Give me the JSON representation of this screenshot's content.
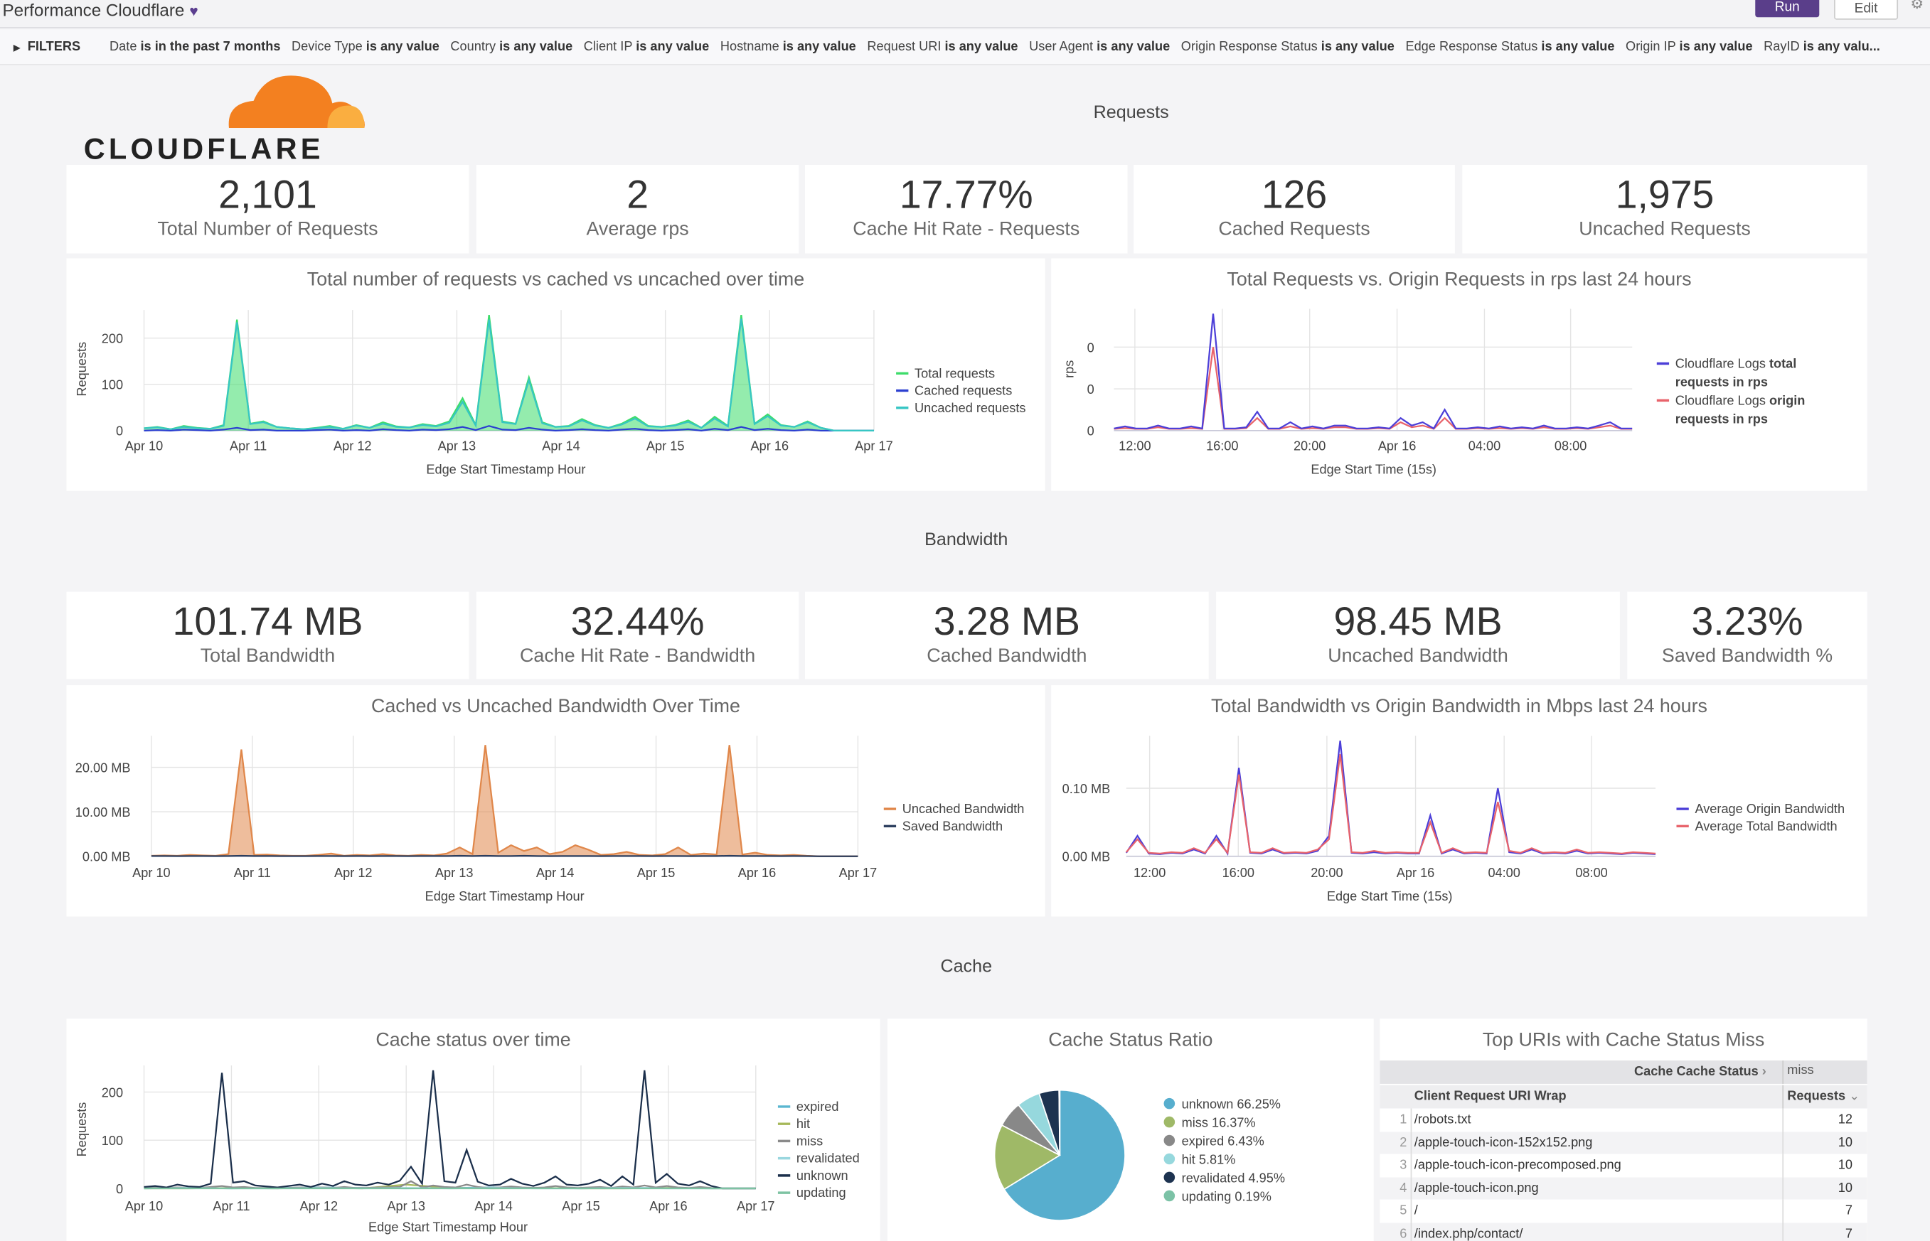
{
  "header": {
    "title": "Performance Cloudflare",
    "run_label": "Run",
    "edit_label": "Edit"
  },
  "filters": {
    "label": "FILTERS",
    "items": [
      {
        "field": "Date",
        "cond": "is in the past 7 months"
      },
      {
        "field": "Device Type",
        "cond": "is any value"
      },
      {
        "field": "Country",
        "cond": "is any value"
      },
      {
        "field": "Client IP",
        "cond": "is any value"
      },
      {
        "field": "Hostname",
        "cond": "is any value"
      },
      {
        "field": "Request URI",
        "cond": "is any value"
      },
      {
        "field": "User Agent",
        "cond": "is any value"
      },
      {
        "field": "Origin Response Status",
        "cond": "is any value"
      },
      {
        "field": "Edge Response Status",
        "cond": "is any value"
      },
      {
        "field": "Origin IP",
        "cond": "is any value"
      },
      {
        "field": "RayID",
        "cond": "is any valu..."
      }
    ]
  },
  "logo": {
    "text": "CLOUDFLARE",
    "color": "#f38020"
  },
  "sections": {
    "requests": "Requests",
    "bandwidth": "Bandwidth",
    "cache": "Cache"
  },
  "kpis_requests": [
    {
      "value": "2,101",
      "label": "Total Number of Requests"
    },
    {
      "value": "2",
      "label": "Average rps"
    },
    {
      "value": "17.77%",
      "label": "Cache Hit Rate - Requests"
    },
    {
      "value": "126",
      "label": "Cached Requests"
    },
    {
      "value": "1,975",
      "label": "Uncached Requests"
    }
  ],
  "kpis_bandwidth": [
    {
      "value": "101.74 MB",
      "label": "Total Bandwidth"
    },
    {
      "value": "32.44%",
      "label": "Cache Hit Rate - Bandwidth"
    },
    {
      "value": "3.28 MB",
      "label": "Cached Bandwidth"
    },
    {
      "value": "98.45 MB",
      "label": "Uncached Bandwidth"
    },
    {
      "value": "3.23%",
      "label": "Saved Bandwidth %"
    }
  ],
  "chart_data": [
    {
      "type": "area",
      "title": "Total number of requests vs cached vs uncached over time",
      "xlabel": "Edge Start Timestamp Hour",
      "ylabel": "Requests",
      "ylim": [
        0,
        250
      ],
      "x_ticks": [
        "Apr 10",
        "Apr 11",
        "Apr 12",
        "Apr 13",
        "Apr 14",
        "Apr 15",
        "Apr 16",
        "Apr 17"
      ],
      "y_ticks": [
        {
          "v": 0,
          "label": "0"
        },
        {
          "v": 100,
          "label": "100"
        },
        {
          "v": 200,
          "label": "200"
        }
      ],
      "grid": true,
      "legend": "right",
      "series": [
        {
          "name": "Total requests",
          "color": "#3ddc6a",
          "fill": true,
          "values": [
            5,
            8,
            3,
            10,
            6,
            4,
            12,
            240,
            15,
            20,
            8,
            5,
            3,
            6,
            10,
            4,
            12,
            6,
            18,
            9,
            7,
            14,
            10,
            20,
            70,
            12,
            250,
            20,
            15,
            115,
            18,
            8,
            10,
            25,
            12,
            6,
            15,
            30,
            10,
            8,
            12,
            22,
            6,
            30,
            10,
            250,
            15,
            35,
            12,
            8,
            20,
            6,
            0,
            0,
            0,
            0
          ]
        },
        {
          "name": "Cached requests",
          "color": "#2b3fd0",
          "values": [
            0,
            1,
            0,
            2,
            1,
            0,
            2,
            6,
            1,
            2,
            0,
            0,
            0,
            1,
            2,
            0,
            1,
            0,
            3,
            1,
            0,
            2,
            1,
            3,
            8,
            1,
            10,
            2,
            1,
            6,
            2,
            0,
            1,
            3,
            1,
            0,
            2,
            4,
            1,
            0,
            1,
            3,
            0,
            4,
            1,
            8,
            1,
            4,
            1,
            0,
            2,
            0,
            0,
            0,
            0,
            0
          ]
        },
        {
          "name": "Uncached requests",
          "color": "#37c6c4",
          "values": [
            5,
            7,
            3,
            8,
            5,
            4,
            10,
            234,
            14,
            18,
            8,
            5,
            3,
            5,
            8,
            4,
            11,
            6,
            15,
            8,
            7,
            12,
            9,
            17,
            62,
            11,
            240,
            18,
            14,
            109,
            16,
            8,
            9,
            22,
            11,
            6,
            13,
            26,
            9,
            8,
            11,
            19,
            6,
            26,
            9,
            242,
            14,
            31,
            11,
            8,
            18,
            6,
            0,
            0,
            0,
            0
          ]
        }
      ]
    },
    {
      "type": "line",
      "title": "Total Requests vs. Origin Requests in rps last 24 hours",
      "xlabel": "Edge Start Time (15s)",
      "ylabel": "rps",
      "ylim": [
        0,
        0.28
      ],
      "x_ticks": [
        "12:00",
        "16:00",
        "20:00",
        "Apr 16",
        "04:00",
        "08:00"
      ],
      "y_ticks": [
        {
          "v": 0,
          "label": "0"
        },
        {
          "v": 0.1,
          "label": "0"
        },
        {
          "v": 0.2,
          "label": "0"
        }
      ],
      "grid": true,
      "legend": "right",
      "series": [
        {
          "name": "Cloudflare Logs origin requests in rps",
          "name_plain": "Cloudflare Logs ",
          "name_bold": "origin requests in rps",
          "color": "#e8636b",
          "values": [
            0.004,
            0.006,
            0.004,
            0.004,
            0.008,
            0.004,
            0.004,
            0.006,
            0.004,
            0.2,
            0.004,
            0.004,
            0.006,
            0.03,
            0.004,
            0.004,
            0.01,
            0.004,
            0.006,
            0.004,
            0.008,
            0.008,
            0.004,
            0.004,
            0.006,
            0.004,
            0.02,
            0.008,
            0.012,
            0.004,
            0.03,
            0.004,
            0.004,
            0.006,
            0.004,
            0.006,
            0.004,
            0.006,
            0.004,
            0.008,
            0.004,
            0.004,
            0.006,
            0.004,
            0.008,
            0.012,
            0.004,
            0.004
          ]
        },
        {
          "name": "Cloudflare Logs total requests in rps",
          "name_plain": "Cloudflare Logs ",
          "name_bold": "total requests in rps",
          "color": "#4c3fd8",
          "values": [
            0.005,
            0.01,
            0.005,
            0.005,
            0.012,
            0.005,
            0.005,
            0.01,
            0.005,
            0.28,
            0.005,
            0.005,
            0.008,
            0.045,
            0.005,
            0.005,
            0.02,
            0.005,
            0.01,
            0.005,
            0.012,
            0.012,
            0.005,
            0.005,
            0.008,
            0.005,
            0.03,
            0.012,
            0.02,
            0.005,
            0.05,
            0.005,
            0.005,
            0.008,
            0.005,
            0.01,
            0.005,
            0.008,
            0.005,
            0.012,
            0.005,
            0.005,
            0.008,
            0.005,
            0.012,
            0.02,
            0.005,
            0.005
          ]
        }
      ]
    },
    {
      "type": "area",
      "title": "Cached vs Uncached Bandwidth Over Time",
      "xlabel": "Edge Start Timestamp Hour",
      "ylabel": "",
      "ylim": [
        0,
        26
      ],
      "x_ticks": [
        "Apr 10",
        "Apr 11",
        "Apr 12",
        "Apr 13",
        "Apr 14",
        "Apr 15",
        "Apr 16",
        "Apr 17"
      ],
      "y_ticks": [
        {
          "v": 0,
          "label": "0.00 MB"
        },
        {
          "v": 10,
          "label": "10.00 MB"
        },
        {
          "v": 20,
          "label": "20.00 MB"
        }
      ],
      "grid": true,
      "legend": "right",
      "series": [
        {
          "name": "Uncached Bandwidth",
          "color": "#e0874a",
          "fill": true,
          "values": [
            0.1,
            0.2,
            0.1,
            0.3,
            0.2,
            0.1,
            0.5,
            24,
            0.3,
            0.4,
            0.2,
            0.1,
            0.1,
            0.3,
            0.6,
            0.1,
            0.3,
            0.2,
            0.5,
            0.2,
            0.1,
            0.3,
            0.2,
            0.6,
            2,
            0.5,
            25,
            0.8,
            2.5,
            1.2,
            2,
            0.5,
            1,
            2.5,
            1.5,
            0.3,
            0.5,
            1,
            0.3,
            0.2,
            0.5,
            2,
            0.3,
            0.6,
            0.4,
            25,
            0.4,
            0.8,
            0.3,
            0.2,
            0.3,
            0.1,
            0,
            0,
            0,
            0
          ]
        },
        {
          "name": "Saved Bandwidth",
          "color": "#2c3e5e",
          "values": [
            0.05,
            0.05,
            0.02,
            0.05,
            0.05,
            0.02,
            0.05,
            0.1,
            0.05,
            0.05,
            0.02,
            0.02,
            0.02,
            0.05,
            0.05,
            0.02,
            0.05,
            0.02,
            0.05,
            0.05,
            0.02,
            0.05,
            0.05,
            0.05,
            0.1,
            0.05,
            0.1,
            0.05,
            0.05,
            0.1,
            0.05,
            0.02,
            0.05,
            0.05,
            0.05,
            0.02,
            0.05,
            0.05,
            0.05,
            0.02,
            0.05,
            0.05,
            0.02,
            0.05,
            0.05,
            0.1,
            0.05,
            0.05,
            0.05,
            0.02,
            0.05,
            0.02,
            0,
            0,
            0,
            0
          ]
        }
      ]
    },
    {
      "type": "line",
      "title": "Total Bandwidth vs Origin Bandwidth in Mbps last 24 hours",
      "xlabel": "Edge Start Time (15s)",
      "ylabel": "",
      "ylim": [
        0,
        0.17
      ],
      "x_ticks": [
        "12:00",
        "16:00",
        "20:00",
        "Apr 16",
        "04:00",
        "08:00"
      ],
      "y_ticks": [
        {
          "v": 0,
          "label": "0.00 MB"
        },
        {
          "v": 0.1,
          "label": "0.10 MB"
        }
      ],
      "grid": true,
      "legend": "right",
      "series": [
        {
          "name": "Average Origin Bandwidth",
          "color": "#4c3fd8",
          "values": [
            0.005,
            0.03,
            0.004,
            0.003,
            0.005,
            0.004,
            0.01,
            0.004,
            0.03,
            0.004,
            0.13,
            0.005,
            0.004,
            0.01,
            0.004,
            0.005,
            0.004,
            0.008,
            0.03,
            0.17,
            0.005,
            0.004,
            0.006,
            0.004,
            0.005,
            0.004,
            0.004,
            0.06,
            0.004,
            0.01,
            0.004,
            0.005,
            0.004,
            0.1,
            0.006,
            0.004,
            0.01,
            0.004,
            0.005,
            0.004,
            0.008,
            0.004,
            0.005,
            0.004,
            0.003,
            0.005,
            0.004,
            0.003
          ]
        },
        {
          "name": "Average Total Bandwidth",
          "color": "#e8636b",
          "values": [
            0.006,
            0.025,
            0.005,
            0.004,
            0.006,
            0.005,
            0.012,
            0.005,
            0.025,
            0.005,
            0.12,
            0.006,
            0.005,
            0.012,
            0.005,
            0.006,
            0.005,
            0.01,
            0.025,
            0.15,
            0.006,
            0.005,
            0.008,
            0.005,
            0.006,
            0.005,
            0.005,
            0.05,
            0.005,
            0.012,
            0.005,
            0.006,
            0.005,
            0.08,
            0.008,
            0.005,
            0.012,
            0.005,
            0.006,
            0.005,
            0.01,
            0.005,
            0.006,
            0.005,
            0.004,
            0.006,
            0.005,
            0.004
          ]
        }
      ]
    },
    {
      "type": "line",
      "title": "Cache status over time",
      "xlabel": "Edge Start Timestamp Hour",
      "ylabel": "Requests",
      "ylim": [
        0,
        245
      ],
      "x_ticks": [
        "Apr 10",
        "Apr 11",
        "Apr 12",
        "Apr 13",
        "Apr 14",
        "Apr 15",
        "Apr 16",
        "Apr 17"
      ],
      "y_ticks": [
        {
          "v": 0,
          "label": "0"
        },
        {
          "v": 100,
          "label": "100"
        },
        {
          "v": 200,
          "label": "200"
        }
      ],
      "grid": true,
      "legend": "right",
      "series": [
        {
          "name": "expired",
          "color": "#5ab6d0",
          "values": [
            0,
            1,
            0,
            1,
            2,
            1,
            0,
            1,
            2,
            1,
            0,
            1,
            1,
            0,
            0
          ]
        },
        {
          "name": "hit",
          "color": "#a6b85a",
          "values": [
            0,
            0,
            1,
            0,
            1,
            0,
            8,
            1,
            0,
            1,
            0,
            0,
            1,
            0,
            0
          ]
        },
        {
          "name": "miss",
          "color": "#8a8a8a",
          "values": [
            1,
            2,
            1,
            2,
            1,
            1,
            3,
            5,
            2,
            3,
            1,
            1,
            0,
            1,
            2,
            1,
            2,
            1,
            3,
            1,
            1,
            2,
            2,
            3,
            15,
            2,
            6,
            3,
            2,
            8,
            3,
            1,
            2,
            4,
            2,
            1,
            2,
            5,
            2,
            1,
            2,
            3,
            1,
            4,
            2,
            6,
            2,
            5,
            2,
            1,
            3,
            1,
            0,
            0,
            0,
            0
          ]
        },
        {
          "name": "revalidated",
          "color": "#9ad7df",
          "values": [
            0,
            1,
            0,
            0,
            1,
            0,
            1,
            0,
            1,
            0,
            0,
            1,
            0,
            0,
            0
          ]
        },
        {
          "name": "unknown",
          "color": "#1b2f4b",
          "values": [
            3,
            5,
            2,
            8,
            4,
            3,
            10,
            240,
            12,
            15,
            6,
            4,
            2,
            5,
            8,
            3,
            10,
            5,
            15,
            8,
            6,
            12,
            8,
            16,
            45,
            10,
            245,
            15,
            12,
            80,
            14,
            6,
            8,
            20,
            10,
            5,
            12,
            25,
            8,
            6,
            10,
            18,
            5,
            25,
            8,
            245,
            12,
            30,
            10,
            6,
            15,
            5,
            0,
            0,
            0,
            0
          ]
        },
        {
          "name": "updating",
          "color": "#7ec3a3",
          "values": [
            0,
            0,
            0,
            0,
            0,
            0,
            0,
            0,
            0,
            0,
            0,
            0,
            0,
            0,
            0
          ]
        }
      ]
    },
    {
      "type": "pie",
      "title": "Cache Status Ratio",
      "legend": "right",
      "slices": [
        {
          "name": "unknown",
          "value": 66.25,
          "label": "unknown 66.25%",
          "color": "#57aece"
        },
        {
          "name": "miss",
          "value": 16.37,
          "label": "miss 16.37%",
          "color": "#9fb967"
        },
        {
          "name": "expired",
          "value": 6.43,
          "label": "expired 6.43%",
          "color": "#888888"
        },
        {
          "name": "hit",
          "value": 5.81,
          "label": "hit 5.81%",
          "color": "#96d8dd"
        },
        {
          "name": "revalidated",
          "value": 4.95,
          "label": "revalidated 4.95%",
          "color": "#1d3350"
        },
        {
          "name": "updating",
          "value": 0.19,
          "label": "updating 0.19%",
          "color": "#7cc2a6"
        }
      ]
    }
  ],
  "table": {
    "title": "Top URIs with Cache Status Miss",
    "pivot_label": "Cache Cache Status",
    "pivot_value": "miss",
    "col_uri": "Client Request URI Wrap",
    "col_requests": "Requests",
    "rows": [
      {
        "n": "1",
        "uri": "/robots.txt",
        "requests": "12"
      },
      {
        "n": "2",
        "uri": "/apple-touch-icon-152x152.png",
        "requests": "10"
      },
      {
        "n": "3",
        "uri": "/apple-touch-icon-precomposed.png",
        "requests": "10"
      },
      {
        "n": "4",
        "uri": "/apple-touch-icon.png",
        "requests": "10"
      },
      {
        "n": "5",
        "uri": "/",
        "requests": "7"
      },
      {
        "n": "6",
        "uri": "/index.php/contact/",
        "requests": "7"
      }
    ]
  }
}
